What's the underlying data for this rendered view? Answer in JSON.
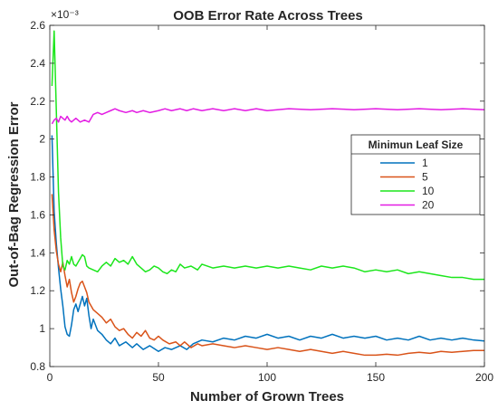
{
  "chart_data": {
    "type": "line",
    "title": "OOB Error Rate Across Trees",
    "xlabel": "Number of Grown Trees",
    "ylabel": "Out-of-Bag Regression Error",
    "y_exponent_label": "×10⁻³",
    "xlim": [
      0,
      200
    ],
    "ylim": [
      0.8,
      2.6
    ],
    "xticks": [
      "0",
      "50",
      "100",
      "150",
      "200"
    ],
    "yticks": [
      "0.8",
      "1",
      "1.2",
      "1.4",
      "1.6",
      "1.8",
      "2",
      "2.2",
      "2.4",
      "2.6"
    ],
    "grid": false,
    "legend_title": "Minimun Leaf Size",
    "legend_position": "right",
    "series": [
      {
        "name": "1",
        "color": "#0072BD",
        "points": [
          [
            1,
            2.02
          ],
          [
            2,
            1.62
          ],
          [
            3,
            1.45
          ],
          [
            4,
            1.32
          ],
          [
            5,
            1.21
          ],
          [
            6,
            1.12
          ],
          [
            7,
            1.01
          ],
          [
            8,
            0.97
          ],
          [
            9,
            0.96
          ],
          [
            10,
            1.02
          ],
          [
            11,
            1.1
          ],
          [
            12,
            1.13
          ],
          [
            13,
            1.09
          ],
          [
            14,
            1.13
          ],
          [
            15,
            1.17
          ],
          [
            16,
            1.12
          ],
          [
            17,
            1.16
          ],
          [
            18,
            1.07
          ],
          [
            19,
            1.0
          ],
          [
            20,
            1.05
          ],
          [
            22,
            0.99
          ],
          [
            24,
            0.97
          ],
          [
            26,
            0.94
          ],
          [
            28,
            0.92
          ],
          [
            30,
            0.95
          ],
          [
            32,
            0.91
          ],
          [
            35,
            0.93
          ],
          [
            38,
            0.9
          ],
          [
            40,
            0.92
          ],
          [
            43,
            0.89
          ],
          [
            46,
            0.91
          ],
          [
            50,
            0.88
          ],
          [
            53,
            0.9
          ],
          [
            56,
            0.89
          ],
          [
            60,
            0.91
          ],
          [
            63,
            0.89
          ],
          [
            66,
            0.92
          ],
          [
            70,
            0.94
          ],
          [
            75,
            0.93
          ],
          [
            80,
            0.95
          ],
          [
            85,
            0.94
          ],
          [
            90,
            0.96
          ],
          [
            95,
            0.95
          ],
          [
            100,
            0.97
          ],
          [
            105,
            0.95
          ],
          [
            110,
            0.96
          ],
          [
            115,
            0.94
          ],
          [
            120,
            0.96
          ],
          [
            125,
            0.95
          ],
          [
            130,
            0.97
          ],
          [
            135,
            0.95
          ],
          [
            140,
            0.96
          ],
          [
            145,
            0.95
          ],
          [
            150,
            0.96
          ],
          [
            155,
            0.94
          ],
          [
            160,
            0.95
          ],
          [
            165,
            0.94
          ],
          [
            170,
            0.96
          ],
          [
            175,
            0.94
          ],
          [
            180,
            0.95
          ],
          [
            185,
            0.94
          ],
          [
            190,
            0.95
          ],
          [
            195,
            0.94
          ],
          [
            200,
            0.935
          ]
        ]
      },
      {
        "name": "5",
        "color": "#D95319",
        "points": [
          [
            1,
            1.71
          ],
          [
            2,
            1.52
          ],
          [
            3,
            1.41
          ],
          [
            4,
            1.34
          ],
          [
            5,
            1.3
          ],
          [
            6,
            1.35
          ],
          [
            7,
            1.28
          ],
          [
            8,
            1.22
          ],
          [
            9,
            1.26
          ],
          [
            10,
            1.19
          ],
          [
            11,
            1.14
          ],
          [
            12,
            1.17
          ],
          [
            13,
            1.21
          ],
          [
            14,
            1.24
          ],
          [
            15,
            1.25
          ],
          [
            16,
            1.22
          ],
          [
            17,
            1.19
          ],
          [
            18,
            1.14
          ],
          [
            20,
            1.1
          ],
          [
            22,
            1.08
          ],
          [
            24,
            1.06
          ],
          [
            26,
            1.03
          ],
          [
            28,
            1.05
          ],
          [
            30,
            1.01
          ],
          [
            32,
            0.99
          ],
          [
            34,
            1.0
          ],
          [
            36,
            0.97
          ],
          [
            38,
            0.95
          ],
          [
            40,
            0.98
          ],
          [
            42,
            0.96
          ],
          [
            44,
            0.99
          ],
          [
            46,
            0.95
          ],
          [
            48,
            0.94
          ],
          [
            50,
            0.96
          ],
          [
            52,
            0.94
          ],
          [
            55,
            0.92
          ],
          [
            58,
            0.93
          ],
          [
            60,
            0.91
          ],
          [
            62,
            0.93
          ],
          [
            65,
            0.9
          ],
          [
            68,
            0.92
          ],
          [
            70,
            0.91
          ],
          [
            75,
            0.92
          ],
          [
            80,
            0.91
          ],
          [
            85,
            0.9
          ],
          [
            90,
            0.91
          ],
          [
            95,
            0.9
          ],
          [
            100,
            0.89
          ],
          [
            105,
            0.9
          ],
          [
            110,
            0.89
          ],
          [
            115,
            0.88
          ],
          [
            120,
            0.89
          ],
          [
            125,
            0.88
          ],
          [
            130,
            0.87
          ],
          [
            135,
            0.88
          ],
          [
            140,
            0.87
          ],
          [
            145,
            0.86
          ],
          [
            150,
            0.86
          ],
          [
            155,
            0.865
          ],
          [
            160,
            0.86
          ],
          [
            165,
            0.87
          ],
          [
            170,
            0.875
          ],
          [
            175,
            0.87
          ],
          [
            180,
            0.88
          ],
          [
            185,
            0.875
          ],
          [
            190,
            0.88
          ],
          [
            195,
            0.885
          ],
          [
            200,
            0.885
          ]
        ]
      },
      {
        "name": "10",
        "color": "#1CE61C",
        "points": [
          [
            1,
            2.28
          ],
          [
            2,
            2.57
          ],
          [
            3,
            2.15
          ],
          [
            4,
            1.72
          ],
          [
            5,
            1.48
          ],
          [
            6,
            1.33
          ],
          [
            7,
            1.31
          ],
          [
            8,
            1.36
          ],
          [
            9,
            1.34
          ],
          [
            10,
            1.38
          ],
          [
            11,
            1.34
          ],
          [
            12,
            1.33
          ],
          [
            13,
            1.35
          ],
          [
            14,
            1.37
          ],
          [
            15,
            1.39
          ],
          [
            16,
            1.38
          ],
          [
            17,
            1.33
          ],
          [
            18,
            1.32
          ],
          [
            20,
            1.31
          ],
          [
            22,
            1.3
          ],
          [
            24,
            1.33
          ],
          [
            26,
            1.35
          ],
          [
            28,
            1.33
          ],
          [
            30,
            1.37
          ],
          [
            32,
            1.35
          ],
          [
            34,
            1.36
          ],
          [
            36,
            1.34
          ],
          [
            38,
            1.38
          ],
          [
            40,
            1.34
          ],
          [
            42,
            1.32
          ],
          [
            44,
            1.3
          ],
          [
            46,
            1.31
          ],
          [
            48,
            1.33
          ],
          [
            50,
            1.32
          ],
          [
            52,
            1.3
          ],
          [
            54,
            1.29
          ],
          [
            56,
            1.31
          ],
          [
            58,
            1.3
          ],
          [
            60,
            1.34
          ],
          [
            62,
            1.32
          ],
          [
            65,
            1.33
          ],
          [
            68,
            1.31
          ],
          [
            70,
            1.34
          ],
          [
            75,
            1.32
          ],
          [
            80,
            1.33
          ],
          [
            85,
            1.32
          ],
          [
            90,
            1.33
          ],
          [
            95,
            1.32
          ],
          [
            100,
            1.33
          ],
          [
            105,
            1.32
          ],
          [
            110,
            1.33
          ],
          [
            115,
            1.32
          ],
          [
            120,
            1.31
          ],
          [
            125,
            1.33
          ],
          [
            130,
            1.32
          ],
          [
            135,
            1.33
          ],
          [
            140,
            1.32
          ],
          [
            145,
            1.3
          ],
          [
            150,
            1.31
          ],
          [
            155,
            1.3
          ],
          [
            160,
            1.31
          ],
          [
            165,
            1.29
          ],
          [
            170,
            1.3
          ],
          [
            175,
            1.29
          ],
          [
            180,
            1.28
          ],
          [
            185,
            1.27
          ],
          [
            190,
            1.27
          ],
          [
            195,
            1.26
          ],
          [
            200,
            1.26
          ]
        ]
      },
      {
        "name": "20",
        "color": "#E31CE3",
        "points": [
          [
            1,
            2.08
          ],
          [
            2,
            2.1
          ],
          [
            3,
            2.11
          ],
          [
            4,
            2.09
          ],
          [
            5,
            2.12
          ],
          [
            6,
            2.11
          ],
          [
            7,
            2.1
          ],
          [
            8,
            2.12
          ],
          [
            9,
            2.1
          ],
          [
            10,
            2.09
          ],
          [
            11,
            2.1
          ],
          [
            12,
            2.11
          ],
          [
            14,
            2.09
          ],
          [
            16,
            2.1
          ],
          [
            18,
            2.09
          ],
          [
            20,
            2.13
          ],
          [
            22,
            2.14
          ],
          [
            24,
            2.13
          ],
          [
            26,
            2.14
          ],
          [
            28,
            2.15
          ],
          [
            30,
            2.16
          ],
          [
            32,
            2.15
          ],
          [
            35,
            2.14
          ],
          [
            38,
            2.15
          ],
          [
            40,
            2.14
          ],
          [
            43,
            2.15
          ],
          [
            46,
            2.14
          ],
          [
            50,
            2.15
          ],
          [
            53,
            2.16
          ],
          [
            56,
            2.15
          ],
          [
            60,
            2.16
          ],
          [
            63,
            2.15
          ],
          [
            66,
            2.16
          ],
          [
            70,
            2.15
          ],
          [
            75,
            2.16
          ],
          [
            80,
            2.15
          ],
          [
            85,
            2.16
          ],
          [
            90,
            2.15
          ],
          [
            95,
            2.16
          ],
          [
            100,
            2.15
          ],
          [
            110,
            2.16
          ],
          [
            120,
            2.155
          ],
          [
            130,
            2.16
          ],
          [
            140,
            2.155
          ],
          [
            150,
            2.16
          ],
          [
            160,
            2.155
          ],
          [
            170,
            2.16
          ],
          [
            180,
            2.155
          ],
          [
            190,
            2.16
          ],
          [
            200,
            2.155
          ]
        ]
      }
    ]
  }
}
